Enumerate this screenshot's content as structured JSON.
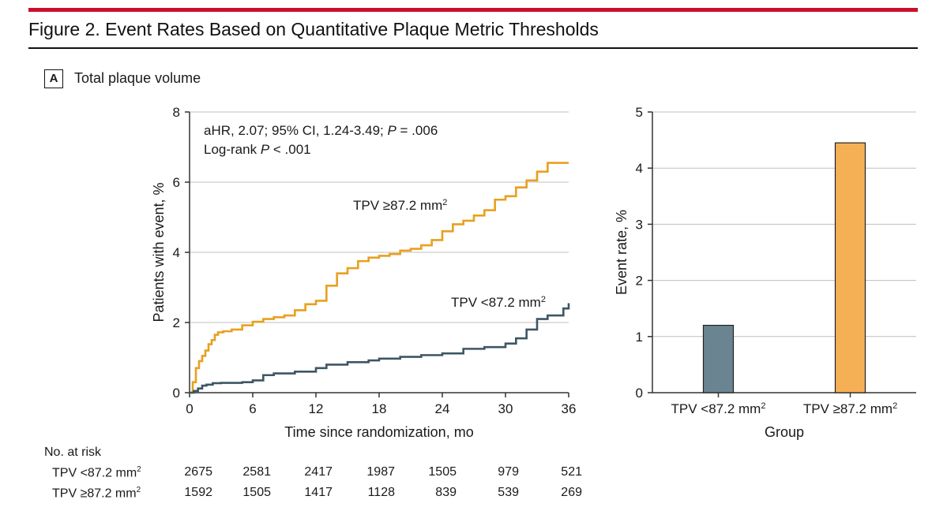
{
  "figure": {
    "title": "Figure 2. Event Rates Based on Quantitative Plaque Metric Thresholds",
    "panel_letter": "A",
    "panel_title": "Total plaque volume"
  },
  "colors": {
    "rule": "#c8102e",
    "high_series": "#e8a020",
    "low_series": "#3d5663",
    "bar_low": "#6a8591",
    "bar_high": "#f5b056"
  },
  "chart_data": [
    {
      "type": "line",
      "xlabel": "Time since randomization, mo",
      "ylabel": "Patients with event, %",
      "xlim": [
        0,
        36
      ],
      "ylim": [
        0,
        8
      ],
      "xticks": [
        0,
        6,
        12,
        18,
        24,
        30,
        36
      ],
      "yticks": [
        0,
        2,
        4,
        6,
        8
      ],
      "annotation_line1": "aHR, 2.07; 95% CI, 1.24-3.49; ",
      "annotation_p_label": "P",
      "annotation_p_value": " = .006",
      "annotation_line2_prefix": "Log-rank ",
      "annotation_line2_p": "P",
      "annotation_line2_value": " < .001",
      "series": [
        {
          "name": "TPV ≥87.2 mm",
          "name_sup": "2",
          "color": "#e8a020",
          "x": [
            0,
            0.3,
            0.6,
            0.9,
            1.2,
            1.5,
            1.8,
            2.1,
            2.4,
            2.7,
            3.2,
            4,
            5,
            6,
            7,
            8,
            9,
            10,
            11,
            12,
            13,
            14,
            15,
            16,
            17,
            18,
            19,
            20,
            21,
            22,
            23,
            24,
            25,
            26,
            27,
            28,
            29,
            30,
            31,
            32,
            33,
            34,
            36
          ],
          "y": [
            0,
            0.3,
            0.7,
            0.9,
            1.05,
            1.2,
            1.38,
            1.5,
            1.65,
            1.72,
            1.75,
            1.8,
            1.92,
            2.02,
            2.1,
            2.15,
            2.2,
            2.35,
            2.52,
            2.62,
            3.05,
            3.4,
            3.55,
            3.75,
            3.85,
            3.9,
            3.95,
            4.05,
            4.1,
            4.2,
            4.35,
            4.6,
            4.8,
            4.9,
            5.05,
            5.2,
            5.5,
            5.6,
            5.85,
            6.05,
            6.3,
            6.55,
            6.55
          ]
        },
        {
          "name": "TPV <87.2 mm",
          "name_sup": "2",
          "color": "#3d5663",
          "x": [
            0,
            0.4,
            0.8,
            1.2,
            1.6,
            2.2,
            3,
            5,
            6,
            7,
            8,
            10,
            12,
            13,
            15,
            17,
            18,
            20,
            22,
            24,
            26,
            28,
            30,
            31,
            32,
            33,
            34,
            35.5,
            36
          ],
          "y": [
            0,
            0.05,
            0.12,
            0.2,
            0.23,
            0.27,
            0.28,
            0.3,
            0.35,
            0.5,
            0.55,
            0.6,
            0.7,
            0.8,
            0.87,
            0.92,
            0.97,
            1.02,
            1.07,
            1.12,
            1.25,
            1.3,
            1.4,
            1.55,
            1.8,
            2.1,
            2.2,
            2.4,
            2.55
          ]
        }
      ],
      "risk_table": {
        "title": "No. at risk",
        "times": [
          0,
          6,
          12,
          18,
          24,
          30,
          36
        ],
        "rows": [
          {
            "label": "TPV <87.2 mm",
            "label_sup": "2",
            "values": [
              "2675",
              "2581",
              "2417",
              "1987",
              "1505",
              "979",
              "521"
            ]
          },
          {
            "label": "TPV ≥87.2 mm",
            "label_sup": "2",
            "values": [
              "1592",
              "1505",
              "1417",
              "1128",
              "839",
              "539",
              "269"
            ]
          }
        ]
      }
    },
    {
      "type": "bar",
      "xlabel": "Group",
      "ylabel": "Event rate, %",
      "ylim": [
        0,
        5
      ],
      "yticks": [
        0,
        1,
        2,
        3,
        4,
        5
      ],
      "categories": [
        "TPV <87.2 mm",
        "TPV ≥87.2 mm"
      ],
      "category_sup": "2",
      "values": [
        1.2,
        4.45
      ],
      "colors": [
        "#6a8591",
        "#f5b056"
      ]
    }
  ]
}
